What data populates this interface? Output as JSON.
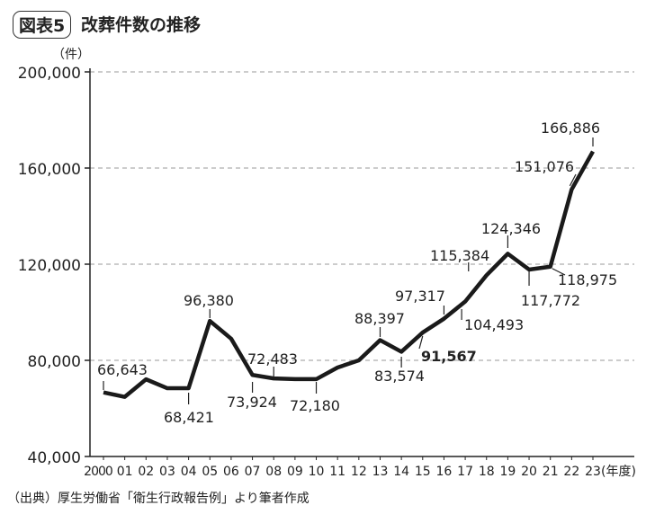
{
  "header": {
    "badge": "図表5",
    "title": "改葬件数の推移"
  },
  "source": "（出典）厚生労働省「衛生行政報告例」より筆者作成",
  "chart_data": {
    "type": "line",
    "title": "改葬件数の推移",
    "ylabel": "（件）",
    "xlabel": "(年度)",
    "ylim": [
      40000,
      200000
    ],
    "yticks": [
      "40,000",
      "80,000",
      "120,000",
      "160,000",
      "200,000"
    ],
    "ytick_values": [
      40000,
      80000,
      120000,
      160000,
      200000
    ],
    "grid": true,
    "categories": [
      "2000",
      "01",
      "02",
      "03",
      "04",
      "05",
      "06",
      "07",
      "08",
      "09",
      "10",
      "11",
      "12",
      "13",
      "14",
      "15",
      "16",
      "17",
      "18",
      "19",
      "20",
      "21",
      "22",
      "23"
    ],
    "values": [
      66643,
      64800,
      72100,
      68400,
      68421,
      96380,
      89000,
      73924,
      72483,
      72200,
      72180,
      77000,
      80000,
      88397,
      83574,
      91567,
      97317,
      104493,
      115384,
      124346,
      117772,
      118975,
      151076,
      166886
    ],
    "data_labels": [
      {
        "index": 0,
        "text": "66,643"
      },
      {
        "index": 4,
        "text": "68,421"
      },
      {
        "index": 5,
        "text": "96,380"
      },
      {
        "index": 7,
        "text": "73,924"
      },
      {
        "index": 8,
        "text": "72,483"
      },
      {
        "index": 10,
        "text": "72,180"
      },
      {
        "index": 13,
        "text": "88,397"
      },
      {
        "index": 14,
        "text": "83,574"
      },
      {
        "index": 15,
        "text": "91,567",
        "bold": true
      },
      {
        "index": 16,
        "text": "97,317"
      },
      {
        "index": 17,
        "text": "104,493"
      },
      {
        "index": 18,
        "text": "115,384"
      },
      {
        "index": 19,
        "text": "124,346"
      },
      {
        "index": 20,
        "text": "117,772"
      },
      {
        "index": 21,
        "text": "118,975"
      },
      {
        "index": 22,
        "text": "151,076"
      },
      {
        "index": 23,
        "text": "166,886"
      }
    ]
  }
}
